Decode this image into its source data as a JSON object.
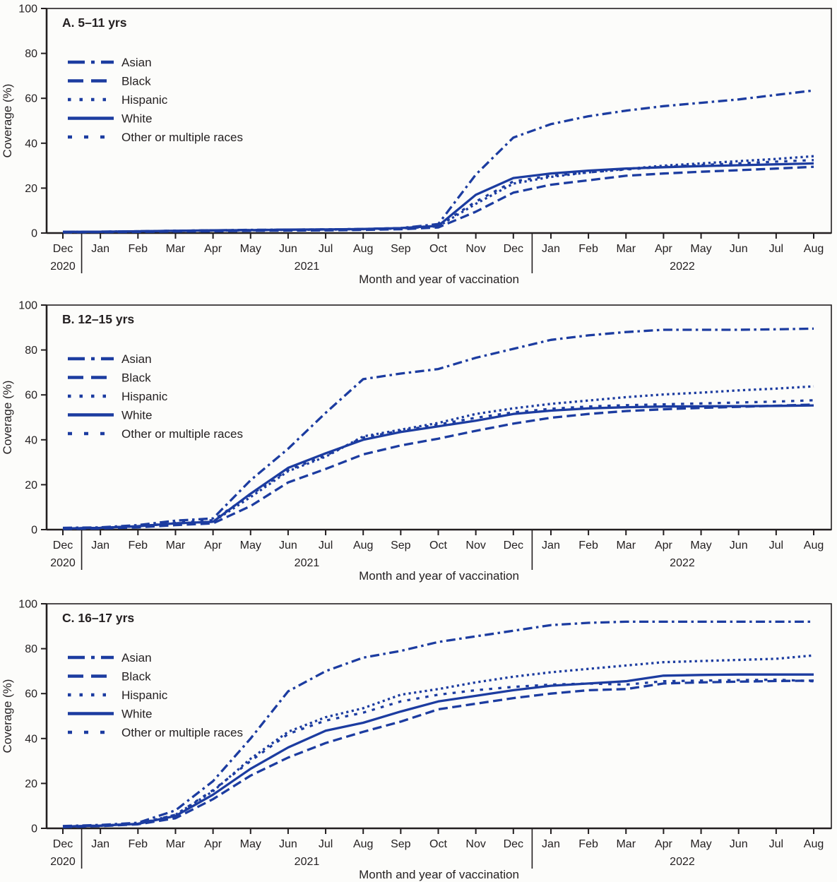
{
  "page": {
    "background": "#fcfcfa",
    "text_color": "#231f20",
    "line_color": "#1c3ca0"
  },
  "chart_data": [
    {
      "type": "line",
      "panel_label": "A. 5–11 yrs",
      "xlabel": "Month and year of vaccination",
      "ylabel": "Coverage (%)",
      "ylim": [
        0,
        100
      ],
      "yticks": [
        0,
        20,
        40,
        60,
        80,
        100
      ],
      "months": [
        "Dec",
        "Jan",
        "Feb",
        "Mar",
        "Apr",
        "May",
        "Jun",
        "Jul",
        "Aug",
        "Sep",
        "Oct",
        "Nov",
        "Dec",
        "Jan",
        "Feb",
        "Mar",
        "Apr",
        "May",
        "Jun",
        "Jul",
        "Aug"
      ],
      "years": [
        {
          "label": "2020",
          "span": [
            0,
            0
          ]
        },
        {
          "label": "2021",
          "span": [
            1,
            12
          ]
        },
        {
          "label": "2022",
          "span": [
            13,
            20
          ]
        }
      ],
      "series": [
        {
          "name": "Asian",
          "style": "dashdot",
          "values": [
            0.5,
            0.6,
            0.8,
            1.0,
            1.2,
            1.4,
            1.5,
            1.6,
            1.8,
            2.2,
            4,
            26,
            42.5,
            48.5,
            52,
            54.5,
            56.5,
            58,
            59.5,
            61.5,
            63.5
          ]
        },
        {
          "name": "Black",
          "style": "longdash",
          "values": [
            0.3,
            0.4,
            0.5,
            0.7,
            0.8,
            1.0,
            1.1,
            1.2,
            1.4,
            1.7,
            2.5,
            9.5,
            18,
            21.5,
            23.5,
            25.5,
            26.5,
            27.3,
            28,
            28.7,
            29.5
          ]
        },
        {
          "name": "Hispanic",
          "style": "dot",
          "values": [
            0.4,
            0.5,
            0.7,
            0.9,
            1.1,
            1.2,
            1.4,
            1.5,
            1.7,
            2.0,
            3.0,
            13,
            22,
            25,
            27,
            28.5,
            30,
            31,
            32,
            33,
            34.2
          ]
        },
        {
          "name": "White",
          "style": "solid",
          "values": [
            0.5,
            0.6,
            0.8,
            1.0,
            1.2,
            1.3,
            1.5,
            1.6,
            1.8,
            2.2,
            3.2,
            17,
            24.5,
            26.5,
            27.8,
            28.7,
            29.3,
            29.8,
            30.2,
            30.6,
            31
          ]
        },
        {
          "name": "Other or multiple races",
          "style": "squares",
          "values": [
            0.5,
            0.6,
            0.8,
            1.0,
            1.2,
            1.3,
            1.5,
            1.6,
            1.8,
            2.2,
            3.2,
            14,
            23,
            25.5,
            27,
            28.3,
            29.5,
            30.3,
            31,
            31.8,
            32.5
          ]
        }
      ]
    },
    {
      "type": "line",
      "panel_label": "B. 12–15 yrs",
      "xlabel": "Month and year of vaccination",
      "ylabel": "Coverage (%)",
      "ylim": [
        0,
        100
      ],
      "yticks": [
        0,
        20,
        40,
        60,
        80,
        100
      ],
      "months": [
        "Dec",
        "Jan",
        "Feb",
        "Mar",
        "Apr",
        "May",
        "Jun",
        "Jul",
        "Aug",
        "Sep",
        "Oct",
        "Nov",
        "Dec",
        "Jan",
        "Feb",
        "Mar",
        "Apr",
        "May",
        "Jun",
        "Jul",
        "Aug"
      ],
      "years": [
        {
          "label": "2020",
          "span": [
            0,
            0
          ]
        },
        {
          "label": "2021",
          "span": [
            1,
            12
          ]
        },
        {
          "label": "2022",
          "span": [
            13,
            20
          ]
        }
      ],
      "series": [
        {
          "name": "Asian",
          "style": "dashdot",
          "values": [
            0.8,
            1.0,
            2.0,
            4.0,
            5.0,
            22,
            36,
            52,
            67,
            69.5,
            71.5,
            76.5,
            80.5,
            84.5,
            86.5,
            88,
            89,
            89,
            89,
            89.2,
            89.5
          ]
        },
        {
          "name": "Black",
          "style": "longdash",
          "values": [
            0.3,
            0.5,
            1.0,
            2.0,
            2.8,
            10.5,
            21,
            27,
            33.5,
            37.5,
            40.5,
            44,
            47.2,
            49.8,
            51.5,
            52.8,
            53.6,
            54.2,
            54.7,
            55.2,
            55.7
          ]
        },
        {
          "name": "Hispanic",
          "style": "dot",
          "values": [
            0.5,
            0.8,
            1.5,
            2.8,
            3.5,
            14.5,
            26,
            32.5,
            41.5,
            44.5,
            47.5,
            51.5,
            54,
            56,
            57.5,
            59,
            60.2,
            61,
            62,
            62.8,
            63.8
          ]
        },
        {
          "name": "White",
          "style": "solid",
          "values": [
            0.5,
            0.8,
            1.5,
            2.8,
            3.5,
            16,
            27.5,
            34,
            40,
            43.5,
            46,
            48.5,
            51.5,
            53,
            54,
            54.5,
            54.8,
            54.9,
            55,
            55.1,
            55.3
          ]
        },
        {
          "name": "Other or multiple races",
          "style": "squares",
          "values": [
            0.5,
            0.8,
            1.5,
            3.0,
            4.2,
            15.5,
            26.5,
            33,
            41,
            44,
            46.8,
            49.8,
            52.2,
            53.8,
            54.8,
            55.4,
            55.8,
            56.2,
            56.6,
            57,
            57.6
          ]
        }
      ]
    },
    {
      "type": "line",
      "panel_label": "C. 16–17 yrs",
      "xlabel": "Month and year of vaccination",
      "ylabel": "Coverage (%)",
      "ylim": [
        0,
        100
      ],
      "yticks": [
        0,
        20,
        40,
        60,
        80,
        100
      ],
      "months": [
        "Dec",
        "Jan",
        "Feb",
        "Mar",
        "Apr",
        "May",
        "Jun",
        "Jul",
        "Aug",
        "Sep",
        "Oct",
        "Nov",
        "Dec",
        "Jan",
        "Feb",
        "Mar",
        "Apr",
        "May",
        "Jun",
        "Jul",
        "Aug"
      ],
      "years": [
        {
          "label": "2020",
          "span": [
            0,
            0
          ]
        },
        {
          "label": "2021",
          "span": [
            1,
            12
          ]
        },
        {
          "label": "2022",
          "span": [
            13,
            20
          ]
        }
      ],
      "series": [
        {
          "name": "Asian",
          "style": "dashdot",
          "values": [
            1.0,
            1.5,
            2.5,
            8,
            21,
            40,
            61,
            70,
            76,
            79,
            83,
            85.5,
            88,
            90.5,
            91.5,
            92,
            92,
            92,
            92,
            92,
            92
          ]
        },
        {
          "name": "Black",
          "style": "longdash",
          "values": [
            0.5,
            1.0,
            1.8,
            4.5,
            13,
            23.5,
            31.5,
            38,
            43,
            47.5,
            53,
            55.5,
            58,
            60,
            61.5,
            62,
            64.5,
            65,
            65.3,
            65.6,
            65.8
          ]
        },
        {
          "name": "Hispanic",
          "style": "dot",
          "values": [
            0.8,
            1.2,
            2.0,
            6,
            16.5,
            31,
            43,
            49.5,
            53.5,
            59.5,
            62,
            65,
            67.5,
            69.5,
            71,
            72.5,
            74,
            74.5,
            75,
            75.5,
            77
          ]
        },
        {
          "name": "White",
          "style": "solid",
          "values": [
            0.8,
            1.2,
            2.0,
            5.5,
            15,
            26.5,
            36,
            43.5,
            47,
            52,
            56.5,
            59,
            61.5,
            63.5,
            64.5,
            65.5,
            68,
            68.3,
            68.5,
            68.5,
            68.5
          ]
        },
        {
          "name": "Other or multiple races",
          "style": "squares",
          "values": [
            0.8,
            1.2,
            2.0,
            6,
            17,
            30,
            42,
            48,
            51.5,
            56.5,
            59.5,
            61.5,
            63,
            64,
            64.5,
            64,
            65.5,
            65.8,
            66,
            66.2,
            65.5
          ]
        }
      ]
    }
  ]
}
